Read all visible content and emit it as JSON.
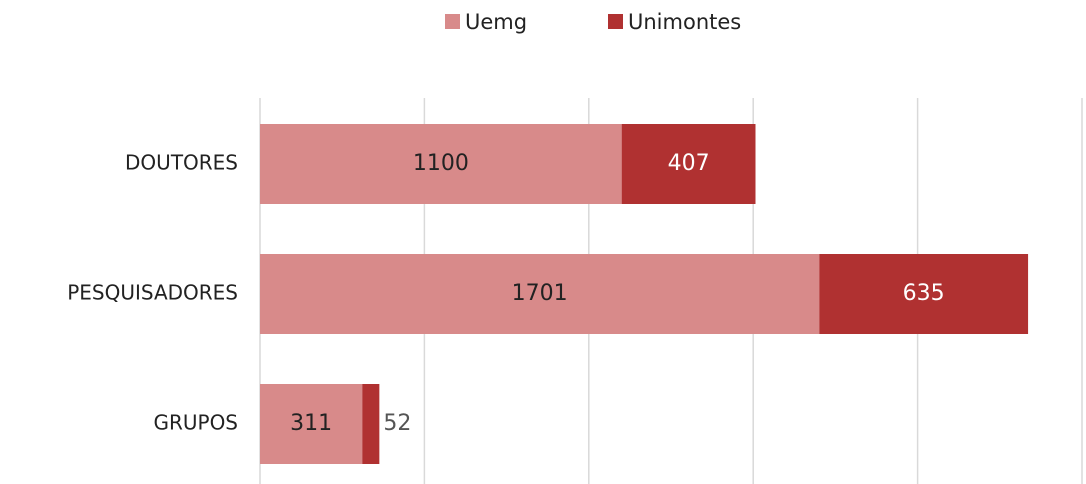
{
  "chart_data": {
    "type": "bar",
    "orientation": "horizontal",
    "stacked": true,
    "categories": [
      "DOUTORES",
      "PESQUISADORES",
      "GRUPOS"
    ],
    "series": [
      {
        "name": "Uemg",
        "color": "#d88a8a",
        "values": [
          1100,
          1701,
          311
        ]
      },
      {
        "name": "Unimontes",
        "color": "#b03131",
        "values": [
          407,
          635,
          52
        ]
      }
    ],
    "xlim": [
      0,
      2500
    ],
    "xticks": [
      0,
      500,
      1000,
      1500,
      2000,
      2500
    ],
    "grid": true,
    "legend": "top"
  }
}
